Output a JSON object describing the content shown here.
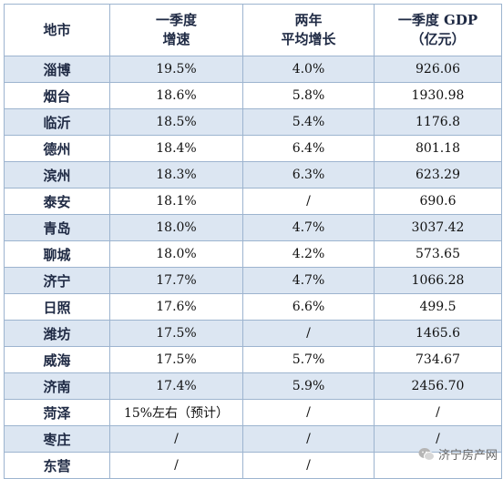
{
  "header": {
    "col1": "地市",
    "col2_line1": "一季度",
    "col2_line2": "增速",
    "col3_line1": "两年",
    "col3_line2": "平均增长",
    "col4_line1": "一季度 GDP",
    "col4_line2": "（亿元）"
  },
  "rows": [
    {
      "city": "淄博",
      "growth": "19.5%",
      "avg": "4.0%",
      "gdp": "926.06"
    },
    {
      "city": "烟台",
      "growth": "18.6%",
      "avg": "5.8%",
      "gdp": "1930.98"
    },
    {
      "city": "临沂",
      "growth": "18.5%",
      "avg": "5.4%",
      "gdp": "1176.8"
    },
    {
      "city": "德州",
      "growth": "18.4%",
      "avg": "6.4%",
      "gdp": "801.18"
    },
    {
      "city": "滨州",
      "growth": "18.3%",
      "avg": "6.3%",
      "gdp": "623.29"
    },
    {
      "city": "泰安",
      "growth": "18.1%",
      "avg": "/",
      "gdp": "690.6"
    },
    {
      "city": "青岛",
      "growth": "18.0%",
      "avg": "4.7%",
      "gdp": "3037.42"
    },
    {
      "city": "聊城",
      "growth": "18.0%",
      "avg": "4.2%",
      "gdp": "573.65"
    },
    {
      "city": "济宁",
      "growth": "17.7%",
      "avg": "4.7%",
      "gdp": "1066.28"
    },
    {
      "city": "日照",
      "growth": "17.6%",
      "avg": "6.6%",
      "gdp": "499.5"
    },
    {
      "city": "潍坊",
      "growth": "17.5%",
      "avg": "/",
      "gdp": "1465.6"
    },
    {
      "city": "威海",
      "growth": "17.5%",
      "avg": "5.7%",
      "gdp": "734.67"
    },
    {
      "city": "济南",
      "growth": "17.4%",
      "avg": "5.9%",
      "gdp": "2456.70"
    },
    {
      "city": "菏泽",
      "growth": "15%左右（预计）",
      "avg": "/",
      "gdp": "/"
    },
    {
      "city": "枣庄",
      "growth": "/",
      "avg": "/",
      "gdp": "/"
    },
    {
      "city": "东营",
      "growth": "/",
      "avg": "/",
      "gdp": ""
    }
  ],
  "watermark": {
    "text": "济宁房产网",
    "icon": "wechat-icon"
  },
  "colors": {
    "shade": "#dce6f2",
    "border": "#9db4cf",
    "header_text": "#1f2a44"
  }
}
